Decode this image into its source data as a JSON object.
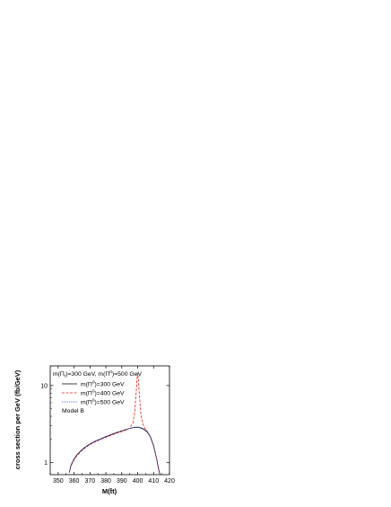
{
  "chart_data": {
    "type": "line",
    "xlabel": "M(t̄t)",
    "ylabel": "cross section per GeV  (fb/GeV)",
    "xlim": [
      345,
      420
    ],
    "ylim": [
      0.7,
      18
    ],
    "yscale": "log",
    "x_ticks": [
      "350",
      "360",
      "370",
      "380",
      "390",
      "400",
      "410",
      "420"
    ],
    "y_ticks": [
      "1",
      "10"
    ],
    "legend": {
      "header_prefix": "m(Π",
      "header_mid": ")=300 GeV, m(Π",
      "header_suffix": ")=500 GeV",
      "header_sub": "t",
      "header_sup": "0",
      "footer": "Model B"
    },
    "series": [
      {
        "name": "m(Π⁰)=300 GeV",
        "label_prefix": "m(Π",
        "label_sup": "0",
        "label_suffix": ")=300 GeV",
        "color": "#000000",
        "dash": "",
        "x": [
          357,
          358,
          360,
          362,
          365,
          368,
          371,
          374,
          377,
          380,
          383,
          386,
          389,
          392,
          395,
          398,
          400,
          402,
          404,
          406,
          408,
          410,
          412,
          413,
          414
        ],
        "y": [
          0.75,
          0.92,
          1.12,
          1.28,
          1.48,
          1.65,
          1.8,
          1.93,
          2.05,
          2.18,
          2.3,
          2.43,
          2.55,
          2.67,
          2.78,
          2.88,
          2.88,
          2.82,
          2.7,
          2.5,
          2.15,
          1.65,
          1.1,
          0.85,
          0.7
        ]
      },
      {
        "name": "m(Π⁰)=400 GeV",
        "label_prefix": "m(Π",
        "label_sup": "0",
        "label_suffix": ")=400 GeV",
        "color": "#e8241b",
        "dash": "3,1.5",
        "x": [
          357,
          358,
          360,
          362,
          365,
          368,
          371,
          374,
          377,
          380,
          383,
          386,
          389,
          392,
          395,
          397,
          398,
          399,
          399.5,
          400,
          400.5,
          401,
          402,
          403,
          404,
          406,
          408,
          410,
          412,
          413,
          414
        ],
        "y": [
          0.74,
          0.9,
          1.09,
          1.25,
          1.44,
          1.61,
          1.76,
          1.89,
          2.01,
          2.13,
          2.25,
          2.38,
          2.5,
          2.62,
          2.8,
          3.3,
          4.3,
          7.8,
          11.5,
          14.5,
          11.5,
          7.8,
          4.2,
          3.3,
          2.9,
          2.55,
          2.18,
          1.68,
          1.12,
          0.86,
          0.7
        ]
      },
      {
        "name": "m(Π⁰)=500 GeV",
        "label_prefix": "m(Π",
        "label_sup": "0",
        "label_suffix": ")=500 GeV",
        "color": "#2a3fd0",
        "dash": "1,1",
        "x": [
          357,
          358,
          360,
          362,
          365,
          368,
          371,
          374,
          377,
          380,
          383,
          386,
          389,
          392,
          395,
          398,
          400,
          402,
          404,
          406,
          408,
          410,
          412,
          413,
          414
        ],
        "y": [
          0.75,
          0.91,
          1.11,
          1.27,
          1.47,
          1.64,
          1.79,
          1.92,
          2.04,
          2.17,
          2.29,
          2.42,
          2.54,
          2.66,
          2.77,
          2.87,
          2.9,
          2.86,
          2.74,
          2.54,
          2.18,
          1.68,
          1.12,
          0.86,
          0.7
        ]
      }
    ],
    "grid": false
  }
}
